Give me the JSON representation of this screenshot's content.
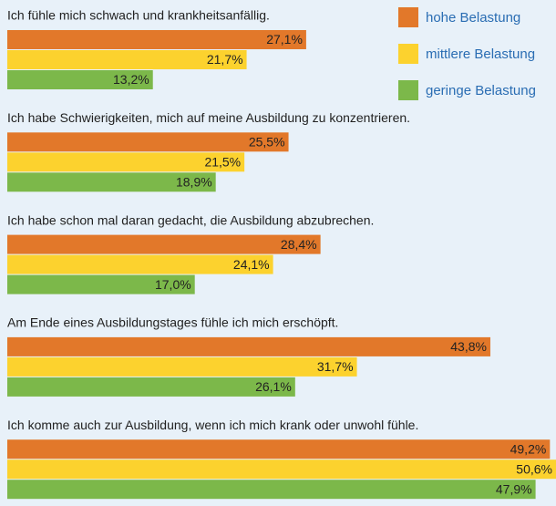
{
  "chart_data": {
    "type": "bar",
    "orientation": "horizontal",
    "categories": [
      "Ich fühle mich schwach und krankheitsanfällig.",
      "Ich habe Schwierigkeiten, mich auf meine Ausbildung zu konzentrieren.",
      "Ich habe schon mal daran gedacht, die Ausbildung abzubrechen.",
      "Am Ende eines Ausbildungstages fühle ich mich erschöpft.",
      "Ich komme auch zur Ausbildung, wenn ich mich krank oder unwohl fühle."
    ],
    "series": [
      {
        "name": "hohe Belastung",
        "color": "#e2782a",
        "values": [
          27.1,
          25.5,
          28.4,
          43.8,
          49.2
        ],
        "value_labels": [
          "27,1%",
          "25,5%",
          "28,4%",
          "43,8%",
          "49,2%"
        ]
      },
      {
        "name": "mittlere Belastung",
        "color": "#fcd22e",
        "values": [
          21.7,
          21.5,
          24.1,
          31.7,
          50.6
        ],
        "value_labels": [
          "21,7%",
          "21,5%",
          "24,1%",
          "31,7%",
          "50,6%"
        ]
      },
      {
        "name": "geringe Belastung",
        "color": "#7cb84a",
        "values": [
          13.2,
          18.9,
          17.0,
          26.1,
          47.9
        ],
        "value_labels": [
          "13,2%",
          "18,9%",
          "17,0%",
          "26,1%",
          "47,9%"
        ]
      }
    ],
    "legend": "top-right"
  }
}
